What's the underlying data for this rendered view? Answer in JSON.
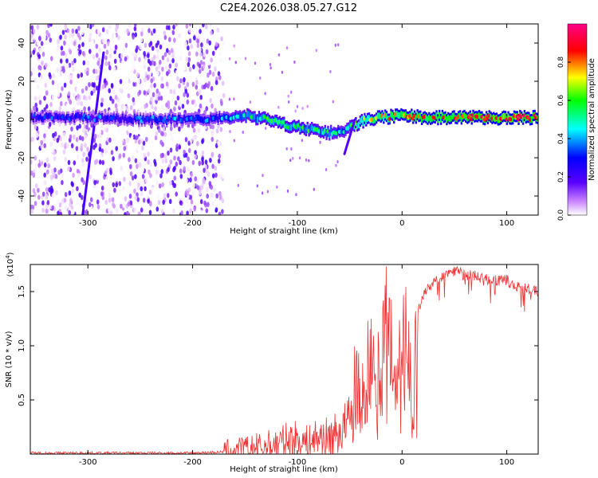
{
  "page_title": "C2E4.2026.038.05.27.G12",
  "chart_data": [
    {
      "type": "heatmap",
      "title": "C2E4.2026.038.05.27.G12",
      "xlabel": "Height of straight line (km)",
      "ylabel": "Frequency (Hz)",
      "xlim": [
        -355,
        130
      ],
      "ylim": [
        -50,
        50
      ],
      "x_ticks": [
        -300,
        -200,
        -100,
        0,
        100
      ],
      "x_tick_labels": [
        "-300",
        "-200",
        "-100",
        "0",
        "100"
      ],
      "y_ticks": [
        -40,
        -20,
        0,
        20,
        40
      ],
      "y_tick_labels": [
        "-40",
        "-20",
        "0",
        "20",
        "40"
      ],
      "grid": false,
      "colorbar": {
        "label": "Normalized spectral amplitude",
        "range": [
          0,
          1
        ],
        "ticks": [
          0,
          0.2,
          0.4,
          0.6,
          0.8
        ],
        "tick_labels": [
          "0.0",
          "0.2",
          "0.4",
          "0.6",
          "0.8"
        ],
        "colormap": [
          "#ffffff",
          "#8a00ff",
          "#0000ff",
          "#00ffff",
          "#00ff00",
          "#ffff00",
          "#ff0000",
          "#ff00aa"
        ]
      },
      "noise_region_x": [
        -355,
        -170
      ],
      "ridge": {
        "x": [
          -355,
          -300,
          -250,
          -200,
          -170,
          -150,
          -130,
          -110,
          -90,
          -70,
          -55,
          -45,
          -35,
          -20,
          0,
          20,
          50,
          80,
          100,
          130
        ],
        "freq": [
          1,
          1,
          0,
          0,
          1,
          2,
          0,
          -3,
          -5,
          -7,
          -6,
          -3,
          0,
          1,
          2,
          1,
          1,
          1,
          1,
          1
        ],
        "amplitude": [
          0.22,
          0.25,
          0.28,
          0.3,
          0.35,
          0.45,
          0.48,
          0.5,
          0.48,
          0.45,
          0.4,
          0.55,
          0.62,
          0.7,
          0.72,
          0.75,
          0.78,
          0.82,
          0.85,
          0.8
        ]
      },
      "streak": {
        "x": [
          -305,
          -285
        ],
        "freq": [
          -50,
          35
        ]
      },
      "dropout": {
        "x": [
          -45,
          -55
        ],
        "freq": [
          0,
          -18
        ]
      }
    },
    {
      "type": "line",
      "xlabel": "Height of straight line (km)",
      "ylabel": "SNR (10 * v/v)",
      "y_multiplier_label": "(x10",
      "y_multiplier_exponent": "4",
      "y_multiplier_close": ")",
      "xlim": [
        -355,
        130
      ],
      "ylim": [
        0,
        1.75
      ],
      "x_ticks": [
        -300,
        -200,
        -100,
        0,
        100
      ],
      "x_tick_labels": [
        "-300",
        "-200",
        "-100",
        "0",
        "100"
      ],
      "y_ticks": [
        0.5,
        1.0,
        1.5
      ],
      "y_tick_labels": [
        "0.5",
        "1.0",
        "1.5"
      ],
      "grid": false,
      "series": [
        {
          "color": "#ee3333",
          "x": [
            -355,
            -300,
            -250,
            -200,
            -170,
            -150,
            -130,
            -110,
            -100,
            -90,
            -80,
            -70,
            -60,
            -50,
            -45,
            -40,
            -35,
            -30,
            -25,
            -20,
            -15,
            -10,
            -5,
            0,
            5,
            10,
            15,
            20,
            25,
            30,
            40,
            50,
            60,
            70,
            80,
            90,
            100,
            110,
            120,
            130
          ],
          "y": [
            0.01,
            0.01,
            0.01,
            0.01,
            0.02,
            0.04,
            0.07,
            0.12,
            0.14,
            0.1,
            0.16,
            0.15,
            0.2,
            0.3,
            0.6,
            0.55,
            0.7,
            0.85,
            0.95,
            0.95,
            1.1,
            1.05,
            0.75,
            1.2,
            1.1,
            0.45,
            1.3,
            1.45,
            1.55,
            1.58,
            1.65,
            1.7,
            1.66,
            1.64,
            1.62,
            1.6,
            1.6,
            1.55,
            1.52,
            1.5
          ]
        }
      ]
    }
  ]
}
